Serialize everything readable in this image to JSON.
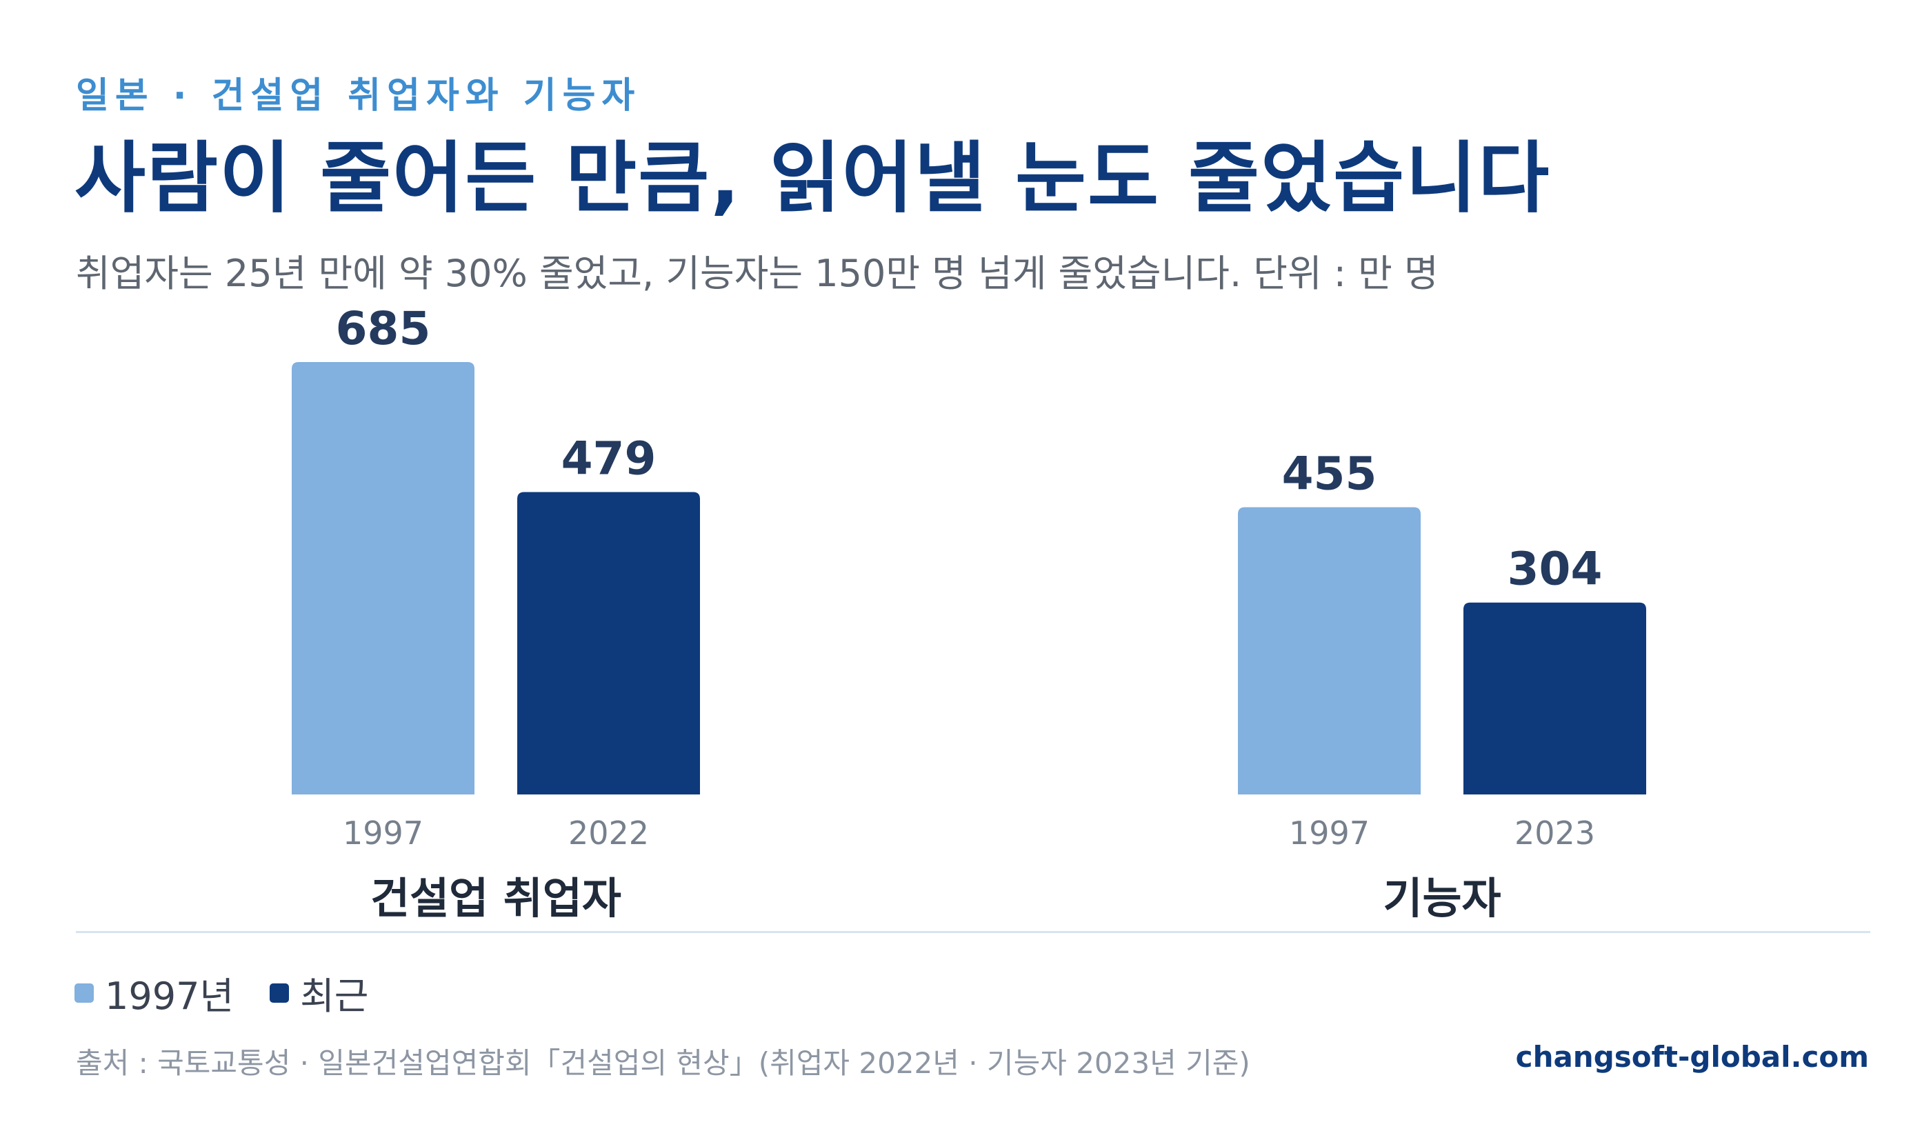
{
  "header": {
    "eyebrow": "일본 · 건설업 취업자와 기능자",
    "title": "사람이 줄어든 만큼, 읽어낼 눈도 줄었습니다",
    "subtitle": "취업자는 25년 만에 약 30% 줄었고, 기능자는 150만 명 넘게 줄었습니다. 단위 : 만 명"
  },
  "colors": {
    "series_1997": "#82b0df",
    "series_recent": "#0e3a7c",
    "value_label": "#243a5e",
    "tick_label": "#76808c",
    "group_label": "#1f2a3a"
  },
  "chart_data": {
    "type": "bar",
    "unit": "만 명",
    "ylim": [
      0,
      685
    ],
    "grid": false,
    "legend_position": "bottom-left",
    "groups": [
      {
        "label": "건설업 취업자",
        "bars": [
          {
            "year": "1997",
            "value": 685,
            "series": "1997년"
          },
          {
            "year": "2022",
            "value": 479,
            "series": "최근"
          }
        ]
      },
      {
        "label": "기능자",
        "bars": [
          {
            "year": "1997",
            "value": 455,
            "series": "1997년"
          },
          {
            "year": "2023",
            "value": 304,
            "series": "최근"
          }
        ]
      }
    ]
  },
  "legend": {
    "items": [
      {
        "label": "1997년",
        "color": "#82b0df"
      },
      {
        "label": "최근",
        "color": "#0e3a7c"
      }
    ]
  },
  "footer": {
    "source": "출처 : 국토교통성 · 일본건설업연합회「건설업의 현상」(취업자 2022년 · 기능자 2023년 기준)",
    "site": "changsoft-global.com"
  }
}
